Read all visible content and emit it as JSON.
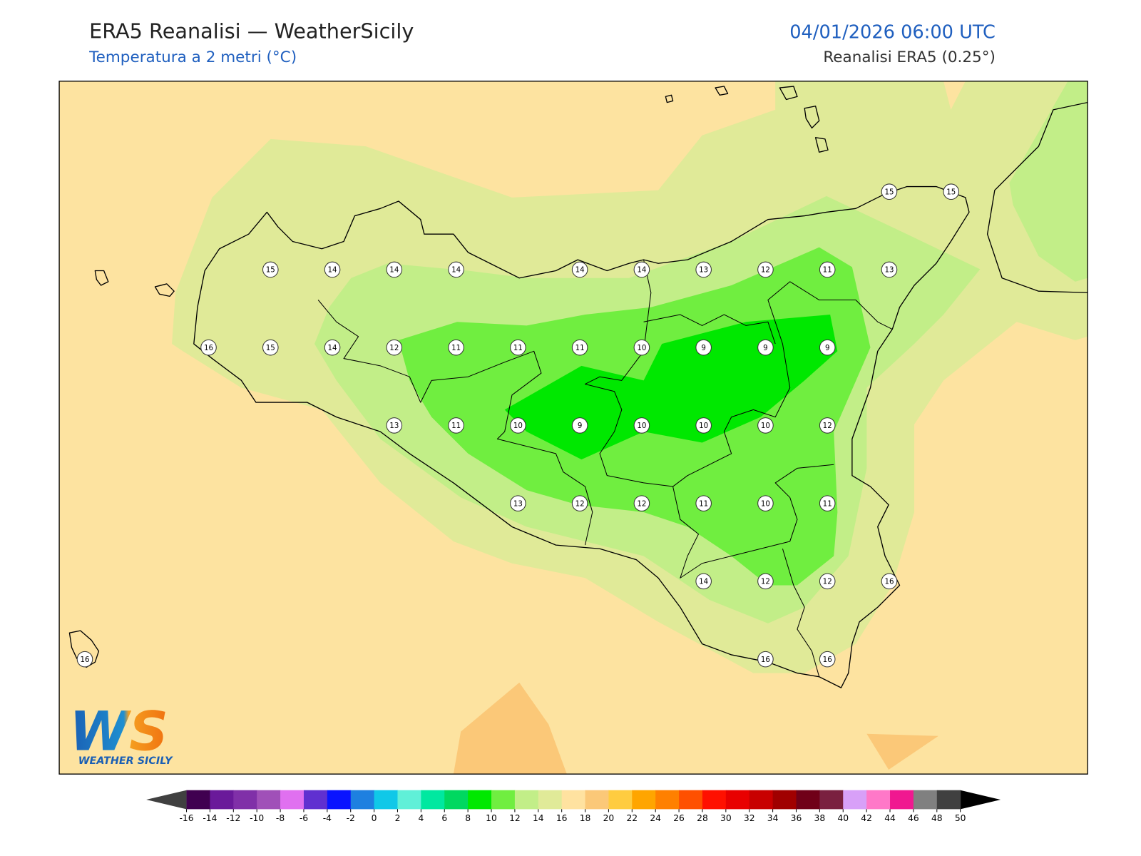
{
  "header": {
    "title": "ERA5 Reanalisi — WeatherSicily",
    "subtitle": "Temperatura a 2 metri (°C)",
    "datetime": "04/01/2026 06:00 UTC",
    "source": "Reanalisi ERA5 (0.25°)"
  },
  "stations": [
    15,
    15,
    15,
    14,
    14,
    14,
    14,
    14,
    13,
    12,
    11,
    13,
    16,
    15,
    14,
    12,
    11,
    11,
    11,
    10,
    9,
    9,
    9,
    13,
    11,
    10,
    9,
    10,
    10,
    10,
    12,
    13,
    12,
    12,
    11,
    10,
    11,
    14,
    12,
    12,
    16,
    16,
    16,
    16
  ],
  "colorbar": {
    "ticks": [
      -16,
      -14,
      -12,
      -10,
      -8,
      -6,
      -4,
      -2,
      0,
      2,
      4,
      6,
      8,
      10,
      12,
      14,
      16,
      18,
      20,
      22,
      24,
      26,
      28,
      30,
      32,
      34,
      36,
      38,
      40,
      42,
      44,
      46,
      48,
      50
    ],
    "colors": [
      "#400050",
      "#6a1a9a",
      "#8030a8",
      "#a050b8",
      "#e070f0",
      "#6030d0",
      "#0a14ff",
      "#1e80e0",
      "#10c8e8",
      "#60f0d8",
      "#00e8a0",
      "#00d860",
      "#00e800",
      "#70ee40",
      "#c2ee88",
      "#e0ea98",
      "#ffe2a0",
      "#fbc878",
      "#ffcc40",
      "#ffa500",
      "#ff8000",
      "#ff5000",
      "#ff1000",
      "#e80000",
      "#c80000",
      "#a00000",
      "#700018",
      "#7a2040",
      "#d8a0f8",
      "#ff78c8",
      "#f01890",
      "#808080",
      "#404040"
    ],
    "under_color": "#404040",
    "over_color": "#000000"
  },
  "logo": {
    "initials": "WS",
    "text": "WEATHER SICILY"
  }
}
